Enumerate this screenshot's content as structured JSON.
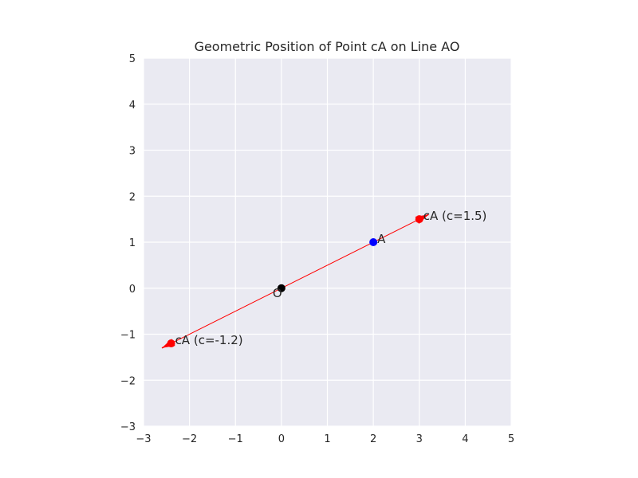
{
  "chart_data": {
    "type": "scatter",
    "title": "Geometric Position of Point cA on Line AO",
    "xlabel": "",
    "ylabel": "",
    "xlim": [
      -3,
      5
    ],
    "ylim": [
      -3,
      5
    ],
    "xticks": [
      -3,
      -2,
      -1,
      0,
      1,
      2,
      3,
      4,
      5
    ],
    "yticks": [
      -3,
      -2,
      -1,
      0,
      1,
      2,
      3,
      4,
      5
    ],
    "xtick_labels": [
      "−3",
      "−2",
      "−1",
      "0",
      "1",
      "2",
      "3",
      "4",
      "5"
    ],
    "ytick_labels": [
      "−3",
      "−2",
      "−1",
      "0",
      "1",
      "2",
      "3",
      "4",
      "5"
    ],
    "grid": true,
    "background_color": "#eaeaf2",
    "grid_color": "#ffffff",
    "line": {
      "from": [
        -2.6,
        -1.3
      ],
      "to": [
        3.2,
        1.6
      ],
      "color": "#ff0000"
    },
    "points": [
      {
        "label": "O",
        "x": 0,
        "y": 0,
        "color": "#000000",
        "label_position": "below-left"
      },
      {
        "label": "A",
        "x": 2,
        "y": 1,
        "color": "#0000ff",
        "label_position": "right"
      },
      {
        "label": "cA (c=1.5)",
        "x": 3,
        "y": 1.5,
        "color": "#ff0000",
        "label_position": "right"
      },
      {
        "label": "cA (c=-1.2)",
        "x": -2.4,
        "y": -1.2,
        "color": "#ff0000",
        "label_position": "right"
      }
    ],
    "arrows": [
      {
        "from": [
          -2.4,
          -1.2
        ],
        "to": [
          -2.6,
          -1.3
        ],
        "color": "#ff0000"
      },
      {
        "from": [
          3.0,
          1.5
        ],
        "to": [
          3.2,
          1.6
        ],
        "color": "#ff0000"
      }
    ]
  }
}
